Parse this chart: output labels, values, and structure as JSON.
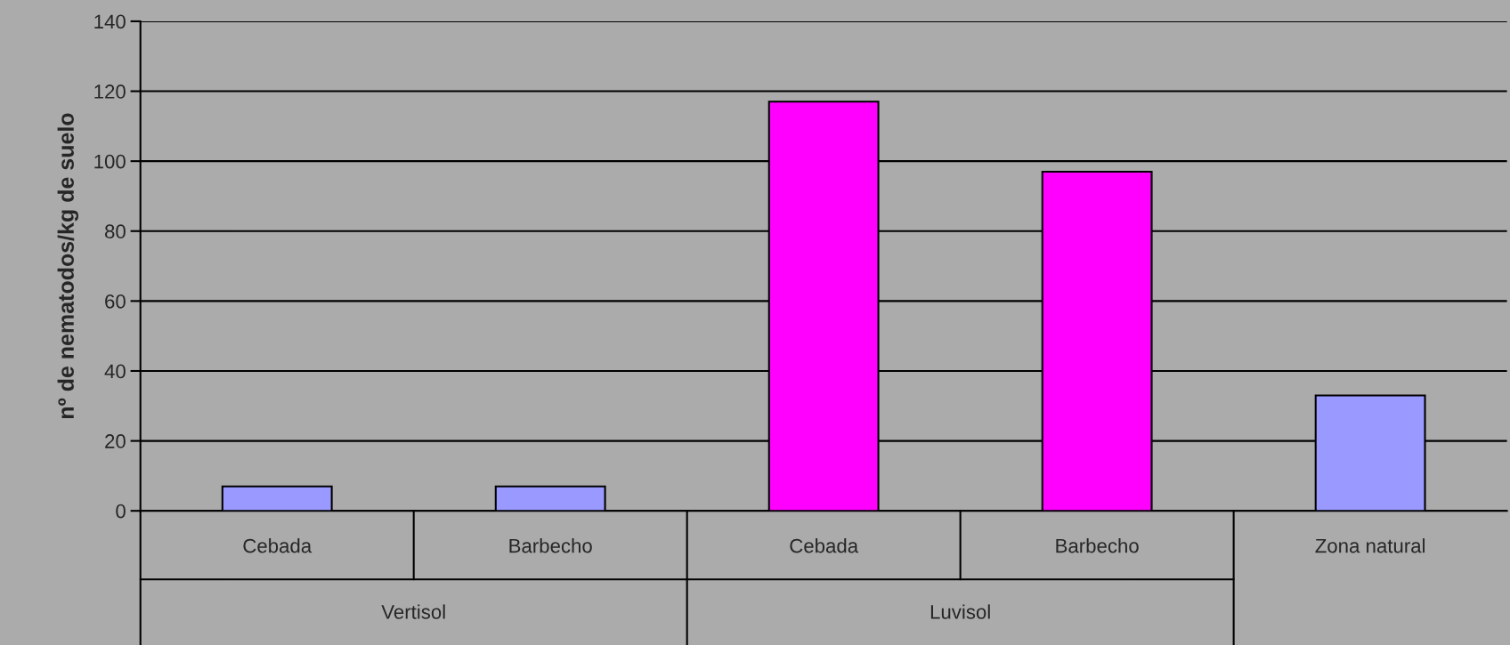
{
  "chart_data": {
    "type": "bar",
    "ylabel": "nº de nematodos/kg de suelo",
    "categories": [
      "Cebada",
      "Barbecho",
      "Cebada",
      "Barbecho",
      "Zona natural"
    ],
    "values": [
      7,
      7,
      117,
      97,
      33
    ],
    "colors": [
      "#9999ff",
      "#9999ff",
      "#ff00ff",
      "#ff00ff",
      "#9999ff"
    ],
    "ylim": [
      0,
      140
    ],
    "yticks": [
      0,
      20,
      40,
      60,
      80,
      100,
      120,
      140
    ],
    "grid": "y",
    "legend": false,
    "annotations": [
      "Vertisol",
      "Luvisol"
    ]
  }
}
